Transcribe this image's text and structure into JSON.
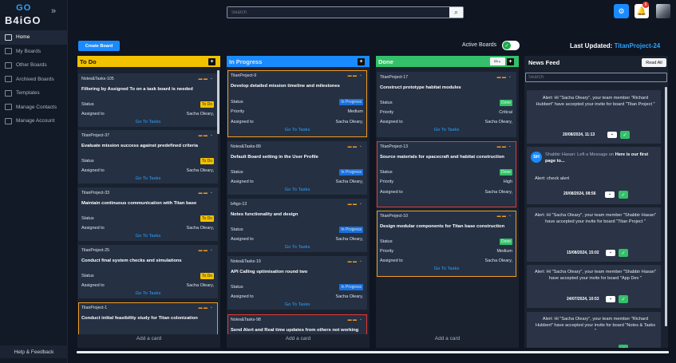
{
  "logo": {
    "line1a": "B",
    "line1b": "GO",
    "line2": "B4iGO"
  },
  "nav": [
    {
      "label": "Home",
      "icon": "home-icon"
    },
    {
      "label": "My Boards",
      "icon": "boards-icon"
    },
    {
      "label": "Other Boards",
      "icon": "other-boards-icon"
    },
    {
      "label": "Archived Boards",
      "icon": "archive-icon"
    },
    {
      "label": "Templates",
      "icon": "template-icon"
    },
    {
      "label": "Manage Contacts",
      "icon": "contacts-icon"
    },
    {
      "label": "Manage Account",
      "icon": "account-icon"
    }
  ],
  "help_label": "Help & Feedback",
  "search": {
    "placeholder": "Search"
  },
  "notif_count": "6",
  "create_board": "Create Board",
  "active_boards": "Active Boards",
  "last_updated_label": "Last Updated:",
  "last_updated_project": "TitanProject-24",
  "columns": {
    "todo": {
      "title": "To Do",
      "add": "Add a card",
      "cards": [
        {
          "id": "Notes&Tasks-105",
          "title": "Filtering by Assigned To on a task board is needed",
          "status": "To Do",
          "assigned": "Sacha Oleary,"
        },
        {
          "id": "TitanProject-37",
          "title": "Evaluate mission success against predefined criteria",
          "status": "To Do",
          "assigned": "Sacha Oleary,"
        },
        {
          "id": "TitanProject-33",
          "title": "Maintain continuous communication with Titan base",
          "status": "To Do",
          "assigned": "Sacha Oleary,"
        },
        {
          "id": "TitanProject-25",
          "title": "Conduct final system checks and simulations",
          "status": "To Do",
          "assigned": "Sacha Oleary,"
        },
        {
          "id": "TitanProject-1",
          "title": "Conduct initial feasibility study for Titan colonization"
        }
      ]
    },
    "progress": {
      "title": "In Progress",
      "add": "Add a card",
      "cards": [
        {
          "id": "TitanProject-9",
          "title": "Develop detailed mission timeline and milestones",
          "status": "In Progress",
          "priority": "Medium",
          "assigned": "Sacha Oleary,"
        },
        {
          "id": "Notes&Tasks-89",
          "title": "Default Board setting in the User Profile",
          "status": "In Progress",
          "assigned": "Sacha Oleary,"
        },
        {
          "id": "b4igo-13",
          "title": "Notes functionality and design",
          "status": "In Progress",
          "assigned": "Sacha Oleary,"
        },
        {
          "id": "Notes&Tasks-19",
          "title": "API Calling optimisation round two",
          "status": "In Progress",
          "assigned": "Sacha Oleary,"
        },
        {
          "id": "Notes&Tasks-98",
          "title": "Send Alert and Real time updates from others not working"
        }
      ]
    },
    "done": {
      "title": "Done",
      "add": "Add a card",
      "cards": [
        {
          "id": "TitanProject-17",
          "title": "Construct prototype habitat modules",
          "status": "Done",
          "priority": "Critical",
          "assigned": "Sacha Oleary,"
        },
        {
          "id": "TitanProject-13",
          "title": "Source materials for spacecraft and habitat construction",
          "status": "Done",
          "priority": "High",
          "assigned": "Sacha Oleary,"
        },
        {
          "id": "TitanProject-10",
          "title": "Design modular components for Titan base construction",
          "status": "Done",
          "priority": "Medium",
          "assigned": "Sacha Oleary,"
        }
      ]
    }
  },
  "labels": {
    "status": "Status",
    "priority": "Priority",
    "assigned": "Assigned to",
    "goto": "Go To Tasks"
  },
  "news": {
    "title": "News Feed",
    "read_all": "Read All",
    "search_placeholder": "Search",
    "items": [
      {
        "text": "Alert: Hi \"Sacha Oleary\", your team member \"Richard Hubbert\" have accepted your invite for board \"Titan Project \"",
        "date": "20/08/2024, 11:13"
      },
      {
        "initials": "SH",
        "sender": "Shabbir Hasan:",
        "lead": "Left a Message on",
        "page": "Here is our first page to...",
        "text": "Alert: check alert",
        "date": "20/08/2024, 08:56"
      },
      {
        "text": "Alert: Hi \"Sacha Oleary\", your team member \"Shabbir Hasan\" have accepted your invite for board \"Titan Project \"",
        "date": "15/08/2024, 15:02"
      },
      {
        "text": "Alert: Hi \"Sacha Oleary\", your team member \"Shabbir Hasan\" have accepted your invite for board \"App Dev \"",
        "date": "24/07/2024, 10:53"
      },
      {
        "text": "Alert: Hi \"Sacha Oleary\", your team member \"Richard Hubbert\" have accepted your invite for board \"Notes & Tasks \""
      }
    ]
  },
  "colors": {
    "accent": "#1a8bff",
    "todo": "#f2c200",
    "progress": "#1a8bff",
    "done": "#34c06a",
    "highlight": "#f29b24",
    "alert": "#e53935"
  }
}
